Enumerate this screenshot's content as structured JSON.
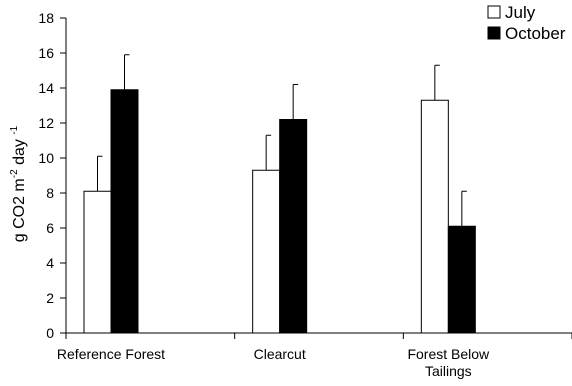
{
  "chart_data": {
    "type": "bar",
    "categories": [
      [
        "Reference Forest"
      ],
      [
        "Clearcut"
      ],
      [
        "Forest Below",
        "Tailings"
      ]
    ],
    "series": [
      {
        "name": "July",
        "color": "#ffffff",
        "values": [
          8.1,
          9.3,
          13.3
        ],
        "errors": [
          2.0,
          2.0,
          2.0
        ]
      },
      {
        "name": "October",
        "color": "#000000",
        "values": [
          13.9,
          12.2,
          6.1
        ],
        "errors": [
          2.0,
          2.0,
          2.0
        ]
      }
    ],
    "ylabel": {
      "parts": [
        {
          "text": "g CO2 m",
          "sup": false
        },
        {
          "text": "-2",
          "sup": true
        },
        {
          "text": "  day ",
          "sup": false
        },
        {
          "text": "-1",
          "sup": true
        }
      ]
    },
    "ylim": [
      0,
      18
    ],
    "yticks": [
      0,
      2,
      4,
      6,
      8,
      10,
      12,
      14,
      16,
      18
    ],
    "legend_position": "top-right",
    "grid": false,
    "error_bars": "upper"
  }
}
